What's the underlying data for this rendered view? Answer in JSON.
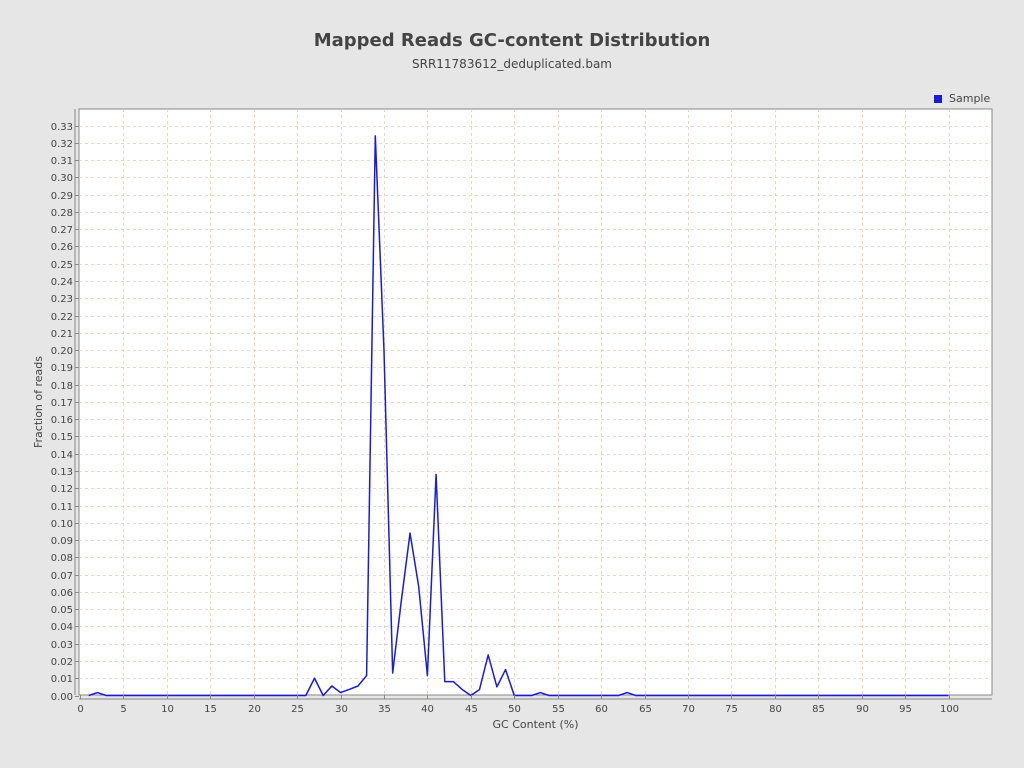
{
  "chart_data": {
    "type": "line",
    "title": "Mapped Reads GC-content Distribution",
    "subtitle": "SRR11783612_deduplicated.bam",
    "xlabel": "GC Content (%)",
    "ylabel": "Fraction of reads",
    "xlim": [
      0,
      105
    ],
    "ylim": [
      0,
      0.34
    ],
    "xticks": [
      0,
      5,
      10,
      15,
      20,
      25,
      30,
      35,
      40,
      45,
      50,
      55,
      60,
      65,
      70,
      75,
      80,
      85,
      90,
      95,
      100
    ],
    "yticks": [
      0.0,
      0.01,
      0.02,
      0.03,
      0.04,
      0.05,
      0.06,
      0.07,
      0.08,
      0.09,
      0.1,
      0.11,
      0.12,
      0.13,
      0.14,
      0.15,
      0.16,
      0.17,
      0.18,
      0.19,
      0.2,
      0.21,
      0.22,
      0.23,
      0.24,
      0.25,
      0.26,
      0.27,
      0.28,
      0.29,
      0.3,
      0.31,
      0.32,
      0.33
    ],
    "grid": true,
    "legend_position": "top-right",
    "series": [
      {
        "name": "Sample",
        "color": "#1a1adb",
        "points": [
          [
            1,
            0.0
          ],
          [
            2,
            0.0017
          ],
          [
            3,
            0.0
          ],
          [
            4,
            0.0
          ],
          [
            5,
            0.0
          ],
          [
            6,
            0.0
          ],
          [
            7,
            0.0
          ],
          [
            8,
            0.0
          ],
          [
            9,
            0.0
          ],
          [
            10,
            0.0
          ],
          [
            11,
            0.0
          ],
          [
            12,
            0.0
          ],
          [
            13,
            0.0
          ],
          [
            14,
            0.0
          ],
          [
            15,
            0.0
          ],
          [
            16,
            0.0
          ],
          [
            17,
            0.0
          ],
          [
            18,
            0.0
          ],
          [
            19,
            0.0
          ],
          [
            20,
            0.0
          ],
          [
            21,
            0.0
          ],
          [
            22,
            0.0
          ],
          [
            23,
            0.0
          ],
          [
            24,
            0.0
          ],
          [
            25,
            0.0
          ],
          [
            26,
            0.0
          ],
          [
            27,
            0.01
          ],
          [
            28,
            0.0
          ],
          [
            29,
            0.0055
          ],
          [
            30,
            0.0017
          ],
          [
            31,
            0.0035
          ],
          [
            32,
            0.0055
          ],
          [
            33,
            0.0115
          ],
          [
            34,
            0.324
          ],
          [
            35,
            0.2
          ],
          [
            36,
            0.013
          ],
          [
            37,
            0.055
          ],
          [
            38,
            0.094
          ],
          [
            39,
            0.063
          ],
          [
            40,
            0.0115
          ],
          [
            41,
            0.128
          ],
          [
            42,
            0.008
          ],
          [
            43,
            0.008
          ],
          [
            44,
            0.0035
          ],
          [
            45,
            0.0
          ],
          [
            46,
            0.0035
          ],
          [
            47,
            0.0235
          ],
          [
            48,
            0.005
          ],
          [
            49,
            0.015
          ],
          [
            50,
            0.0
          ],
          [
            51,
            0.0
          ],
          [
            52,
            0.0
          ],
          [
            53,
            0.0017
          ],
          [
            54,
            0.0
          ],
          [
            55,
            0.0
          ],
          [
            56,
            0.0
          ],
          [
            57,
            0.0
          ],
          [
            58,
            0.0
          ],
          [
            59,
            0.0
          ],
          [
            60,
            0.0
          ],
          [
            61,
            0.0
          ],
          [
            62,
            0.0
          ],
          [
            63,
            0.0017
          ],
          [
            64,
            0.0
          ],
          [
            65,
            0.0
          ],
          [
            66,
            0.0
          ],
          [
            67,
            0.0
          ],
          [
            68,
            0.0
          ],
          [
            69,
            0.0
          ],
          [
            70,
            0.0
          ],
          [
            71,
            0.0
          ],
          [
            72,
            0.0
          ],
          [
            73,
            0.0
          ],
          [
            74,
            0.0
          ],
          [
            75,
            0.0
          ],
          [
            76,
            0.0
          ],
          [
            77,
            0.0
          ],
          [
            78,
            0.0
          ],
          [
            79,
            0.0
          ],
          [
            80,
            0.0
          ],
          [
            81,
            0.0
          ],
          [
            82,
            0.0
          ],
          [
            83,
            0.0
          ],
          [
            84,
            0.0
          ],
          [
            85,
            0.0
          ],
          [
            86,
            0.0
          ],
          [
            87,
            0.0
          ],
          [
            88,
            0.0
          ],
          [
            89,
            0.0
          ],
          [
            90,
            0.0
          ],
          [
            91,
            0.0
          ],
          [
            92,
            0.0
          ],
          [
            93,
            0.0
          ],
          [
            94,
            0.0
          ],
          [
            95,
            0.0
          ],
          [
            96,
            0.0
          ],
          [
            97,
            0.0
          ],
          [
            98,
            0.0
          ],
          [
            99,
            0.0
          ],
          [
            100,
            0.0
          ]
        ]
      }
    ],
    "colors": {
      "background": "#e6e6e6",
      "plot_background": "#ffffff",
      "grid": "#f0c8b0",
      "axis": "#888888",
      "text": "#444444"
    }
  }
}
